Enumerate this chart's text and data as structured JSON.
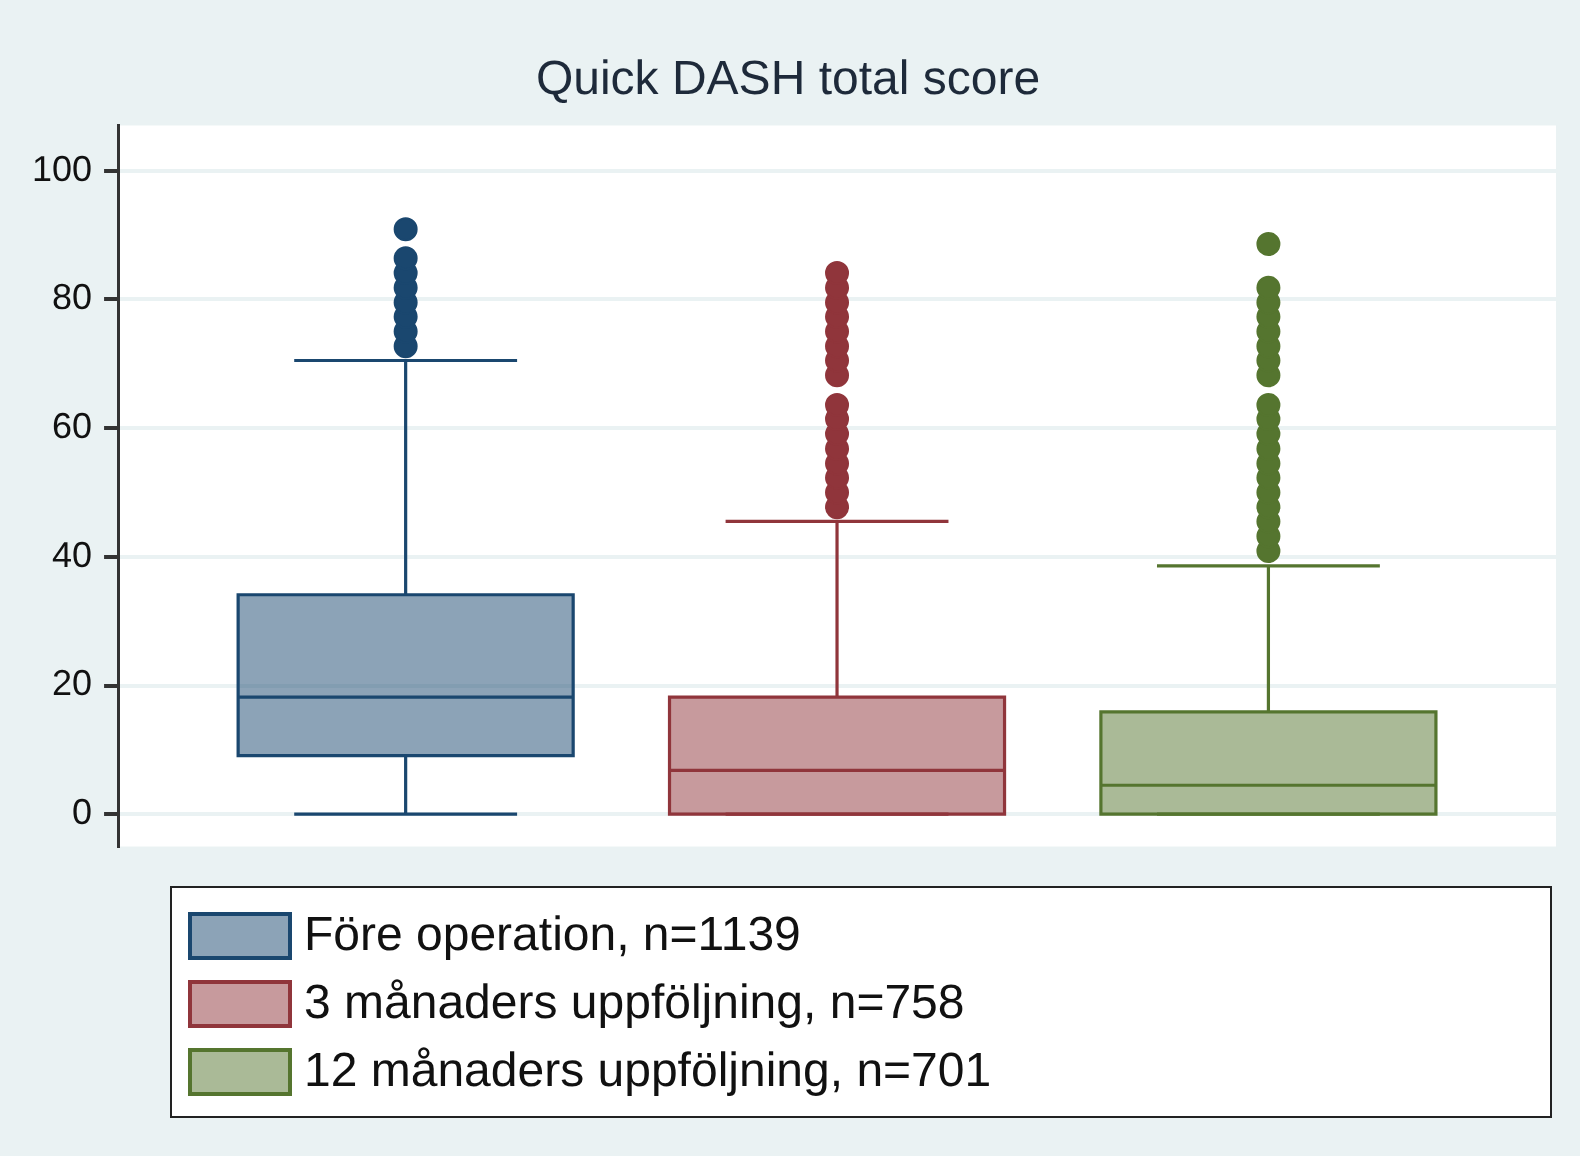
{
  "chart_data": {
    "type": "box",
    "title": "Quick DASH total score",
    "categories": [
      null
    ],
    "ylim": [
      -5,
      107
    ],
    "yticks": [
      0,
      20,
      40,
      60,
      80,
      100
    ],
    "grid": "y",
    "legend": "bottom",
    "tick_labels": "y",
    "series": [
      {
        "name": "Före operation, n=1139",
        "color": "#1a476f",
        "boxes": [
          {
            "low": 0,
            "q1": 9.1,
            "median": 18.2,
            "q3": 34.1,
            "high": 70.5,
            "outliers": [
              72.7,
              75,
              77.3,
              79.5,
              81.8,
              84.1,
              86.4,
              90.9
            ]
          }
        ]
      },
      {
        "name": "3 månaders uppföljning, n=758",
        "color": "#90353b",
        "boxes": [
          {
            "low": 0,
            "q1": 0,
            "median": 6.8,
            "q3": 18.2,
            "high": 45.5,
            "outliers": [
              47.7,
              50,
              52.3,
              54.5,
              56.8,
              59.1,
              61.4,
              63.6,
              68.2,
              70.5,
              72.7,
              75,
              77.3,
              79.5,
              81.8,
              84.1
            ]
          }
        ]
      },
      {
        "name": "12 månaders uppföljning, n=701",
        "color": "#55752f",
        "boxes": [
          {
            "low": 0,
            "q1": 0,
            "median": 4.5,
            "q3": 15.9,
            "high": 38.6,
            "outliers": [
              40.9,
              43.2,
              45.5,
              47.7,
              50,
              52.3,
              54.5,
              56.8,
              59.1,
              61.4,
              63.6,
              68.2,
              70.5,
              72.7,
              75,
              77.3,
              79.5,
              81.8,
              88.6
            ]
          }
        ]
      }
    ]
  }
}
